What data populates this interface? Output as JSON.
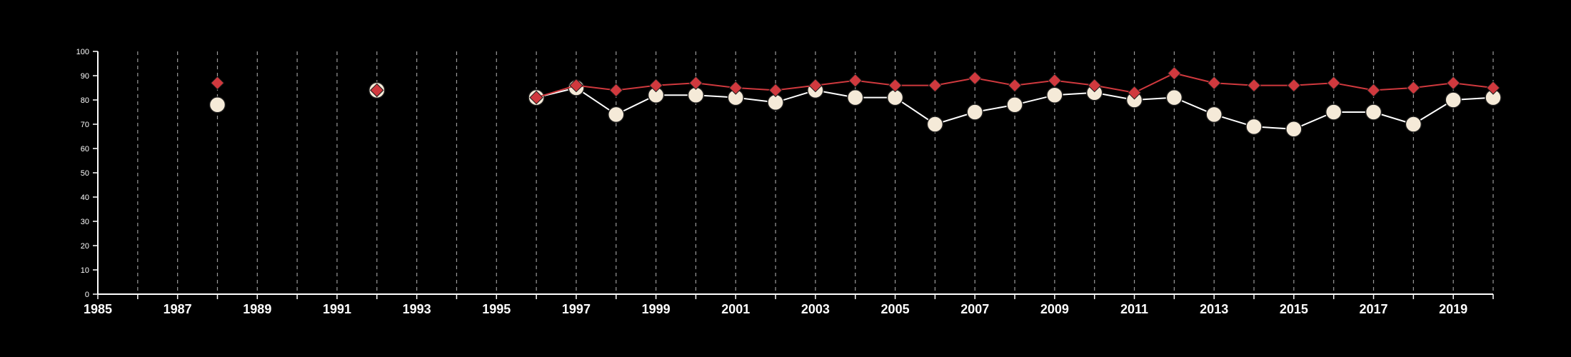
{
  "chart_data": {
    "type": "line",
    "title": "",
    "xlabel": "",
    "ylabel": "",
    "xlim": [
      1985,
      2020
    ],
    "ylim": [
      0,
      100
    ],
    "x_ticks": [
      1985,
      1987,
      1989,
      1991,
      1993,
      1995,
      1997,
      1999,
      2001,
      2003,
      2005,
      2007,
      2009,
      2011,
      2013,
      2015,
      2017,
      2019
    ],
    "y_ticks": [
      0,
      10,
      20,
      30,
      40,
      50,
      60,
      70,
      80,
      90,
      100
    ],
    "grid": "vertical dashed lines at every year",
    "legend": "none",
    "series": [
      {
        "marker": "circle",
        "color": "#f5ead8",
        "line_color": "#ffffff",
        "points": [
          [
            1988,
            78
          ],
          [
            1992,
            84
          ],
          [
            1996,
            81
          ],
          [
            1997,
            85
          ],
          [
            1998,
            74
          ],
          [
            1999,
            82
          ],
          [
            2000,
            82
          ],
          [
            2001,
            81
          ],
          [
            2002,
            79
          ],
          [
            2003,
            84
          ],
          [
            2004,
            81
          ],
          [
            2005,
            81
          ],
          [
            2006,
            70
          ],
          [
            2007,
            75
          ],
          [
            2008,
            78
          ],
          [
            2009,
            82
          ],
          [
            2010,
            83
          ],
          [
            2011,
            80
          ],
          [
            2012,
            81
          ],
          [
            2013,
            74
          ],
          [
            2014,
            69
          ],
          [
            2015,
            68
          ],
          [
            2016,
            75
          ],
          [
            2017,
            75
          ],
          [
            2018,
            70
          ],
          [
            2019,
            80
          ],
          [
            2020,
            81
          ]
        ]
      },
      {
        "marker": "diamond",
        "color": "#d0393e",
        "line_color": "#d0393e",
        "points": [
          [
            1988,
            87
          ],
          [
            1992,
            84
          ],
          [
            1996,
            81
          ],
          [
            1997,
            86
          ],
          [
            1998,
            84
          ],
          [
            1999,
            86
          ],
          [
            2000,
            87
          ],
          [
            2001,
            85
          ],
          [
            2002,
            84
          ],
          [
            2003,
            86
          ],
          [
            2004,
            88
          ],
          [
            2005,
            86
          ],
          [
            2006,
            86
          ],
          [
            2007,
            89
          ],
          [
            2008,
            86
          ],
          [
            2009,
            88
          ],
          [
            2010,
            86
          ],
          [
            2011,
            83
          ],
          [
            2012,
            91
          ],
          [
            2013,
            87
          ],
          [
            2014,
            86
          ],
          [
            2015,
            86
          ],
          [
            2016,
            87
          ],
          [
            2017,
            84
          ],
          [
            2018,
            85
          ],
          [
            2019,
            87
          ],
          [
            2020,
            85
          ]
        ]
      }
    ]
  }
}
